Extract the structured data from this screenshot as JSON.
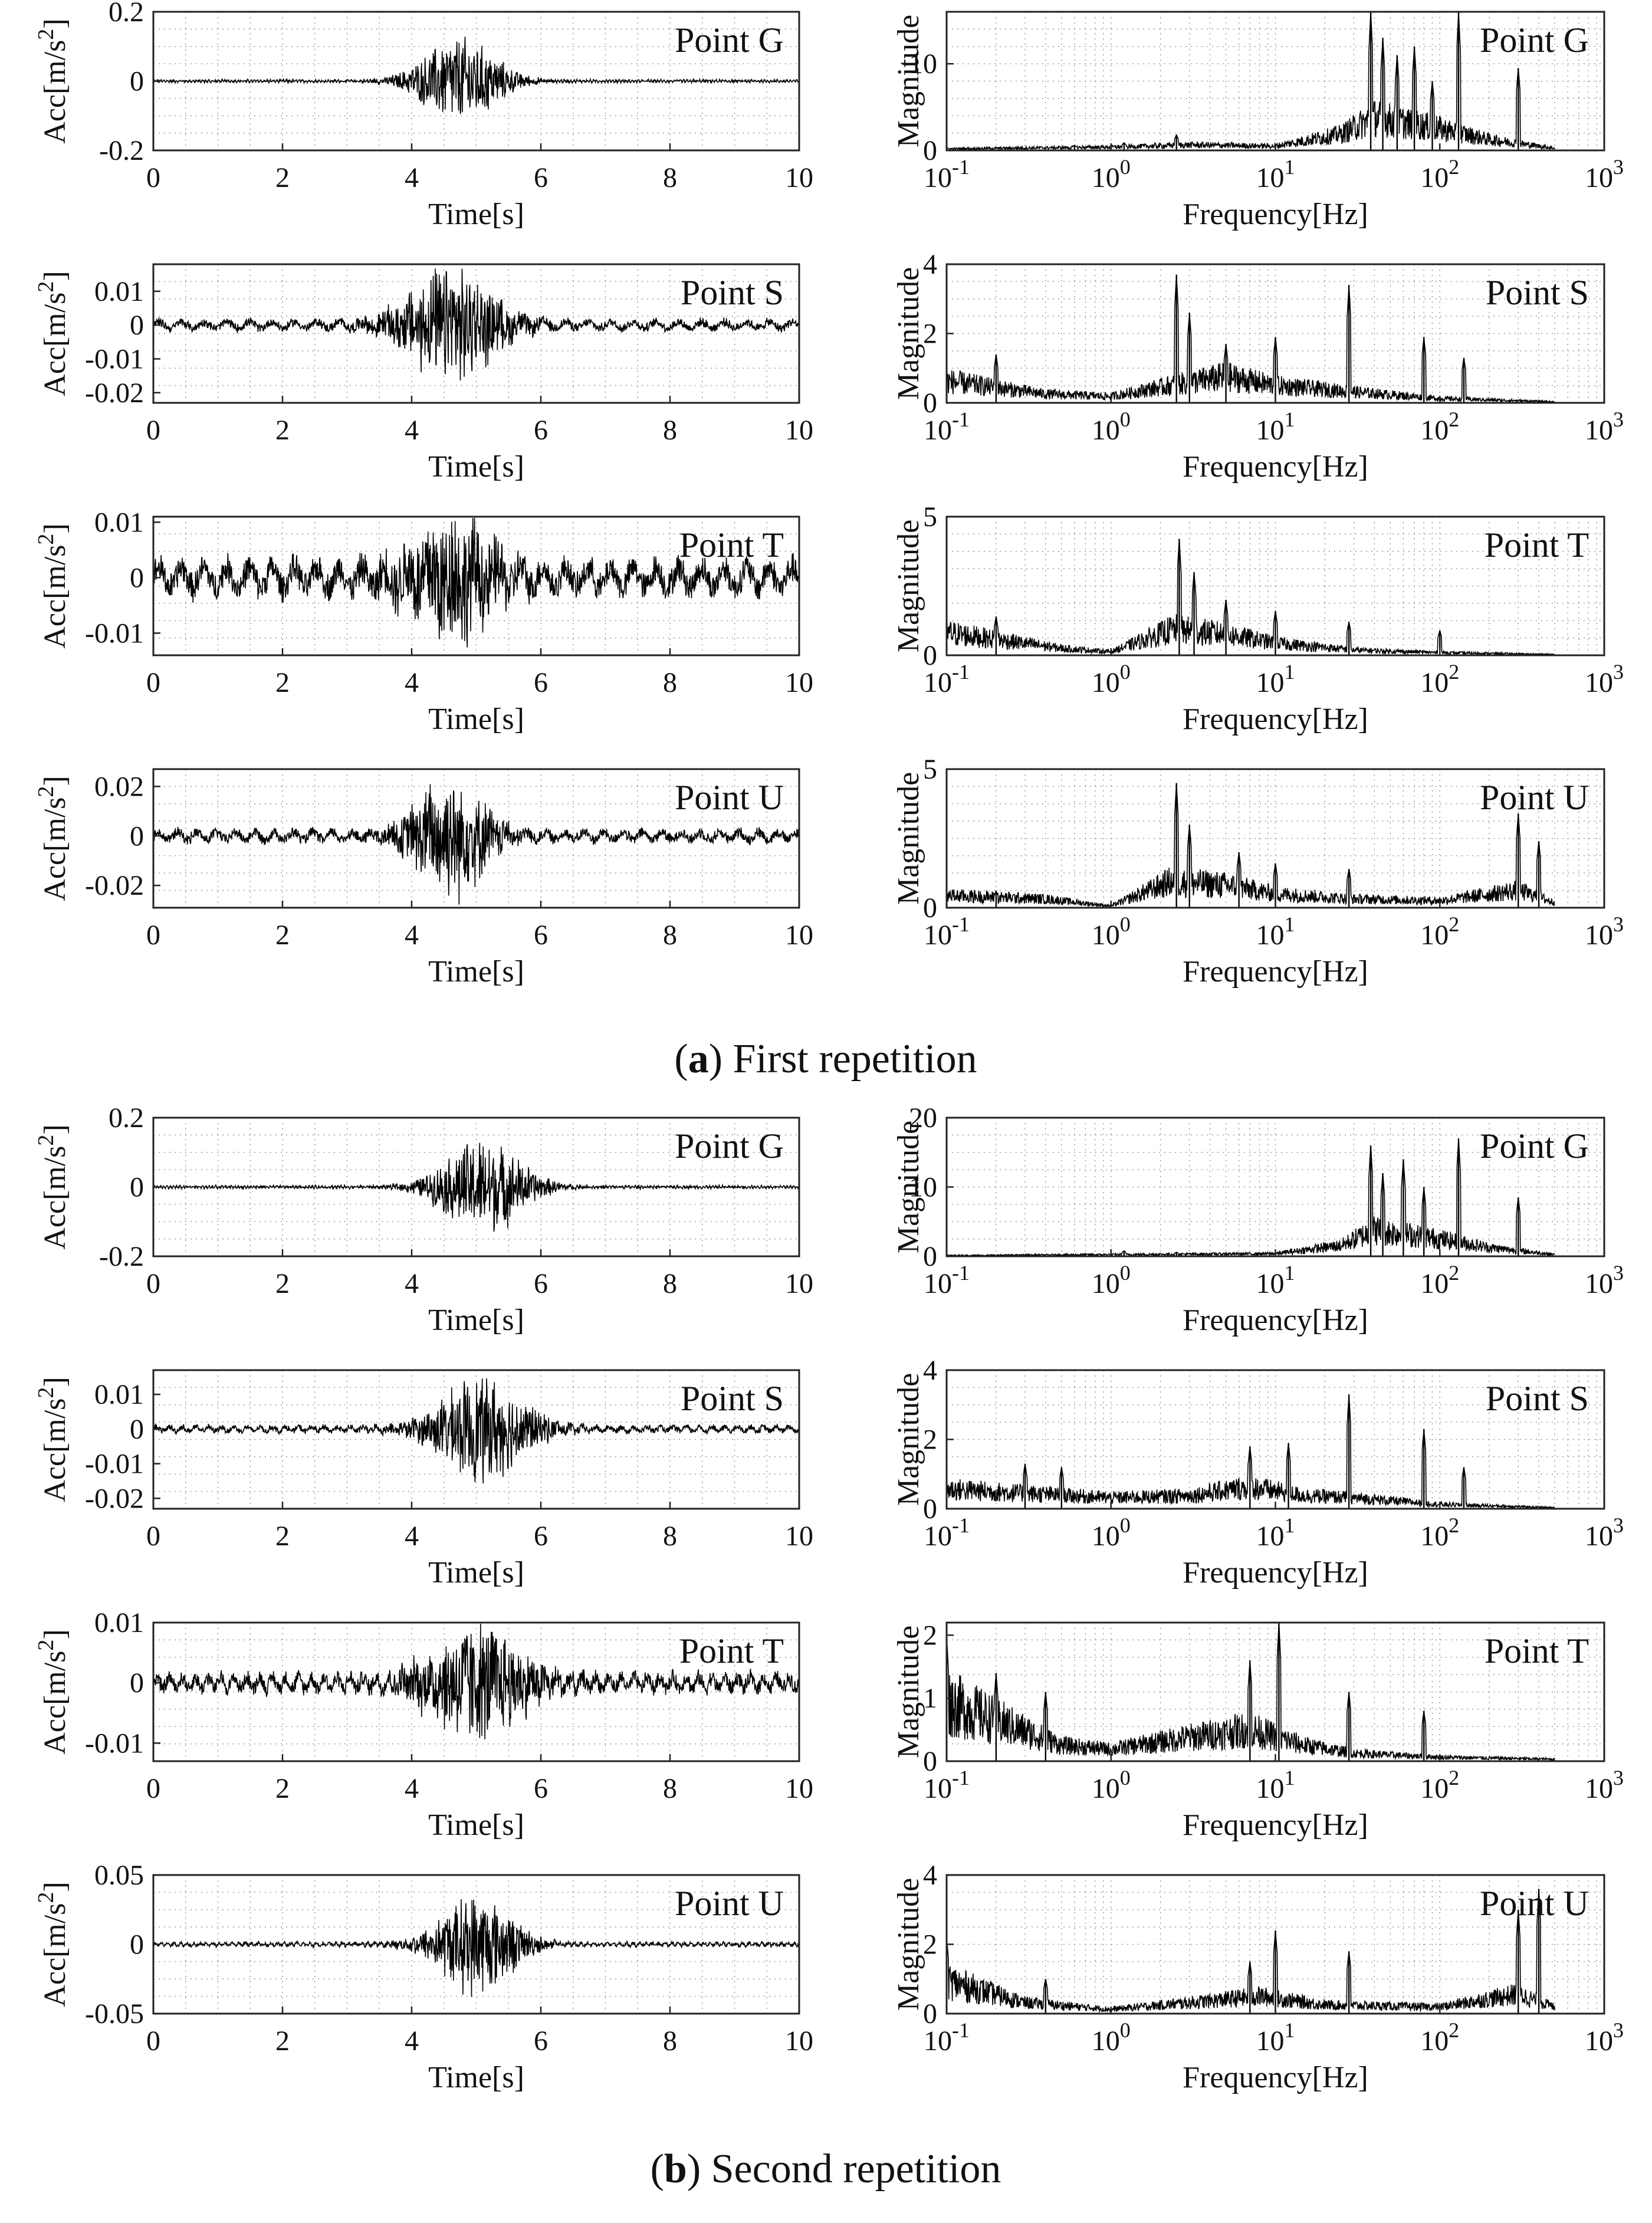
{
  "captions": [
    {
      "letter": "a",
      "text": "First repetition"
    },
    {
      "letter": "b",
      "text": "Second repetition"
    }
  ],
  "chart_data": [
    {
      "type": "line",
      "group": "a",
      "row": 0,
      "kind": "time",
      "title": "Point G",
      "xlabel": "Time[s]",
      "ylabel": "Acc[m/s2]",
      "xlim": [
        0,
        10
      ],
      "ylim": [
        -0.2,
        0.2
      ],
      "yticks": [
        -0.2,
        0,
        0.2
      ],
      "ytick_labels": [
        "-0.2",
        "0",
        "0.2"
      ],
      "xticks": [
        0,
        2,
        4,
        6,
        8,
        10
      ],
      "envelope": {
        "center": 4.75,
        "width": 0.7,
        "peak": 0.14,
        "baseline": 0.004,
        "period": 0.05
      }
    },
    {
      "type": "line",
      "group": "a",
      "row": 0,
      "kind": "freq",
      "title": "Point G",
      "xlabel": "Frequency[Hz]",
      "ylabel": "Magnitude",
      "xlim": [
        0.1,
        1000
      ],
      "ylim": [
        0,
        16
      ],
      "yticks": [
        0,
        10
      ],
      "ytick_labels": [
        "0",
        "10"
      ],
      "x_log": true,
      "peaks": [
        {
          "f": 0.6,
          "m": 0.6
        },
        {
          "f": 1.2,
          "m": 0.9
        },
        {
          "f": 2.5,
          "m": 1.8
        },
        {
          "f": 38,
          "m": 16
        },
        {
          "f": 45,
          "m": 13
        },
        {
          "f": 55,
          "m": 11
        },
        {
          "f": 70,
          "m": 12
        },
        {
          "f": 90,
          "m": 8
        },
        {
          "f": 130,
          "m": 16
        },
        {
          "f": 300,
          "m": 9.5
        }
      ],
      "band": [
        [
          0.1,
          0.3
        ],
        [
          1,
          0.6
        ],
        [
          3,
          1
        ],
        [
          10,
          0.8
        ],
        [
          25,
          3
        ],
        [
          40,
          6
        ],
        [
          100,
          4
        ],
        [
          200,
          2
        ],
        [
          500,
          0.4
        ]
      ]
    },
    {
      "type": "line",
      "group": "a",
      "row": 1,
      "kind": "time",
      "title": "Point S",
      "xlabel": "Time[s]",
      "ylabel": "Acc[m/s2]",
      "xlim": [
        0,
        10
      ],
      "ylim": [
        -0.023,
        0.018
      ],
      "yticks": [
        -0.02,
        -0.01,
        0,
        0.01
      ],
      "ytick_labels": [
        "-0.02",
        "-0.01",
        "0",
        "0.01"
      ],
      "xticks": [
        0,
        2,
        4,
        6,
        8,
        10
      ],
      "envelope": {
        "center": 4.6,
        "width": 0.8,
        "peak": 0.018,
        "baseline": 0.0015,
        "period": 0.35
      }
    },
    {
      "type": "line",
      "group": "a",
      "row": 1,
      "kind": "freq",
      "title": "Point S",
      "xlabel": "Frequency[Hz]",
      "ylabel": "Magnitude",
      "xlim": [
        0.1,
        1000
      ],
      "ylim": [
        0,
        4
      ],
      "yticks": [
        0,
        2,
        4
      ],
      "ytick_labels": [
        "0",
        "2",
        "4"
      ],
      "x_log": true,
      "peaks": [
        {
          "f": 0.2,
          "m": 1.4
        },
        {
          "f": 2.5,
          "m": 3.7
        },
        {
          "f": 3.0,
          "m": 2.6
        },
        {
          "f": 5,
          "m": 1.7
        },
        {
          "f": 10,
          "m": 1.9
        },
        {
          "f": 28,
          "m": 3.4
        },
        {
          "f": 80,
          "m": 1.9
        },
        {
          "f": 140,
          "m": 1.3
        }
      ],
      "band": [
        [
          0.1,
          1
        ],
        [
          0.4,
          0.4
        ],
        [
          1,
          0.3
        ],
        [
          2.3,
          0.8
        ],
        [
          5,
          1.2
        ],
        [
          10,
          0.8
        ],
        [
          30,
          0.5
        ],
        [
          100,
          0.2
        ],
        [
          500,
          0.05
        ]
      ]
    },
    {
      "type": "line",
      "group": "a",
      "row": 2,
      "kind": "time",
      "title": "Point T",
      "xlabel": "Time[s]",
      "ylabel": "Acc[m/s2]",
      "xlim": [
        0,
        10
      ],
      "ylim": [
        -0.014,
        0.011
      ],
      "yticks": [
        -0.01,
        0,
        0.01
      ],
      "ytick_labels": [
        "-0.01",
        "0",
        "0.01"
      ],
      "xticks": [
        0,
        2,
        4,
        6,
        8,
        10
      ],
      "envelope": {
        "center": 4.6,
        "width": 0.75,
        "peak": 0.011,
        "baseline": 0.003,
        "period": 0.35
      }
    },
    {
      "type": "line",
      "group": "a",
      "row": 2,
      "kind": "freq",
      "title": "Point T",
      "xlabel": "Frequency[Hz]",
      "ylabel": "Magnitude",
      "xlim": [
        0.1,
        1000
      ],
      "ylim": [
        0,
        5
      ],
      "yticks": [
        0,
        5
      ],
      "ytick_labels": [
        "0",
        "5"
      ],
      "x_log": true,
      "peaks": [
        {
          "f": 0.2,
          "m": 1.4
        },
        {
          "f": 2.6,
          "m": 4.2
        },
        {
          "f": 3.2,
          "m": 3
        },
        {
          "f": 5,
          "m": 2
        },
        {
          "f": 10,
          "m": 1.6
        },
        {
          "f": 28,
          "m": 1.2
        },
        {
          "f": 100,
          "m": 0.9
        }
      ],
      "band": [
        [
          0.1,
          1.3
        ],
        [
          0.5,
          0.4
        ],
        [
          1,
          0.2
        ],
        [
          2.4,
          1.5
        ],
        [
          5,
          1.2
        ],
        [
          10,
          0.7
        ],
        [
          30,
          0.3
        ],
        [
          100,
          0.15
        ],
        [
          500,
          0.05
        ]
      ]
    },
    {
      "type": "line",
      "group": "a",
      "row": 3,
      "kind": "time",
      "title": "Point U",
      "xlabel": "Time[s]",
      "ylabel": "Acc[m/s2]",
      "xlim": [
        0,
        10
      ],
      "ylim": [
        -0.029,
        0.027
      ],
      "yticks": [
        -0.02,
        0,
        0.02
      ],
      "ytick_labels": [
        "-0.02",
        "0",
        "0.02"
      ],
      "xticks": [
        0,
        2,
        4,
        6,
        8,
        10
      ],
      "envelope": {
        "center": 4.6,
        "width": 0.65,
        "peak": 0.026,
        "baseline": 0.0025,
        "period": 0.3
      }
    },
    {
      "type": "line",
      "group": "a",
      "row": 3,
      "kind": "freq",
      "title": "Point U",
      "xlabel": "Frequency[Hz]",
      "ylabel": "Magnitude",
      "xlim": [
        0.1,
        1000
      ],
      "ylim": [
        0,
        5
      ],
      "yticks": [
        0,
        5
      ],
      "ytick_labels": [
        "0",
        "5"
      ],
      "x_log": true,
      "peaks": [
        {
          "f": 0.2,
          "m": 0.6
        },
        {
          "f": 2.5,
          "m": 4.5
        },
        {
          "f": 3,
          "m": 3
        },
        {
          "f": 6,
          "m": 2
        },
        {
          "f": 10,
          "m": 1.6
        },
        {
          "f": 28,
          "m": 1.4
        },
        {
          "f": 300,
          "m": 3.4
        },
        {
          "f": 400,
          "m": 2.4
        }
      ],
      "band": [
        [
          0.1,
          0.7
        ],
        [
          0.4,
          0.5
        ],
        [
          1,
          0.1
        ],
        [
          2.3,
          1.5
        ],
        [
          5,
          1.3
        ],
        [
          10,
          0.8
        ],
        [
          30,
          0.5
        ],
        [
          100,
          0.4
        ],
        [
          300,
          1
        ],
        [
          500,
          0.3
        ]
      ]
    },
    {
      "type": "line",
      "group": "b",
      "row": 0,
      "kind": "time",
      "title": "Point G",
      "xlabel": "Time[s]",
      "ylabel": "Acc[m/s2]",
      "xlim": [
        0,
        10
      ],
      "ylim": [
        -0.2,
        0.2
      ],
      "yticks": [
        -0.2,
        0,
        0.2
      ],
      "ytick_labels": [
        "-0.2",
        "0",
        "0.2"
      ],
      "xticks": [
        0,
        2,
        4,
        6,
        8,
        10
      ],
      "envelope": {
        "center": 5.1,
        "width": 0.75,
        "peak": 0.15,
        "baseline": 0.004,
        "period": 0.05
      }
    },
    {
      "type": "line",
      "group": "b",
      "row": 0,
      "kind": "freq",
      "title": "Point G",
      "xlabel": "Frequency[Hz]",
      "ylabel": "Magnitude",
      "xlim": [
        0.1,
        1000
      ],
      "ylim": [
        0,
        20
      ],
      "yticks": [
        0,
        10,
        20
      ],
      "ytick_labels": [
        "0",
        "10",
        "20"
      ],
      "x_log": true,
      "peaks": [
        {
          "f": 1.2,
          "m": 0.8
        },
        {
          "f": 2.5,
          "m": 0.6
        },
        {
          "f": 38,
          "m": 16
        },
        {
          "f": 45,
          "m": 12
        },
        {
          "f": 60,
          "m": 14
        },
        {
          "f": 80,
          "m": 10
        },
        {
          "f": 130,
          "m": 17
        },
        {
          "f": 300,
          "m": 8.5
        }
      ],
      "band": [
        [
          0.1,
          0.2
        ],
        [
          1,
          0.4
        ],
        [
          3,
          0.5
        ],
        [
          10,
          0.6
        ],
        [
          25,
          2.5
        ],
        [
          40,
          6
        ],
        [
          100,
          4
        ],
        [
          200,
          2
        ],
        [
          500,
          0.4
        ]
      ]
    },
    {
      "type": "line",
      "group": "b",
      "row": 1,
      "kind": "time",
      "title": "Point S",
      "xlabel": "Time[s]",
      "ylabel": "Acc[m/s2]",
      "xlim": [
        0,
        10
      ],
      "ylim": [
        -0.023,
        0.017
      ],
      "yticks": [
        -0.02,
        -0.01,
        0,
        0.01
      ],
      "ytick_labels": [
        "-0.02",
        "-0.01",
        "0",
        "0.01"
      ],
      "xticks": [
        0,
        2,
        4,
        6,
        8,
        10
      ],
      "envelope": {
        "center": 5.1,
        "width": 0.8,
        "peak": 0.016,
        "baseline": 0.001,
        "period": 0.2
      }
    },
    {
      "type": "line",
      "group": "b",
      "row": 1,
      "kind": "freq",
      "title": "Point S",
      "xlabel": "Frequency[Hz]",
      "ylabel": "Magnitude",
      "xlim": [
        0.1,
        1000
      ],
      "ylim": [
        0,
        4
      ],
      "yticks": [
        0,
        2,
        4
      ],
      "ytick_labels": [
        "0",
        "2",
        "4"
      ],
      "x_log": true,
      "peaks": [
        {
          "f": 0.3,
          "m": 1.3
        },
        {
          "f": 0.5,
          "m": 1.2
        },
        {
          "f": 7,
          "m": 1.8
        },
        {
          "f": 12,
          "m": 1.9
        },
        {
          "f": 28,
          "m": 3.3
        },
        {
          "f": 80,
          "m": 2.3
        },
        {
          "f": 140,
          "m": 1.2
        }
      ],
      "band": [
        [
          0.1,
          0.9
        ],
        [
          1,
          0.5
        ],
        [
          3,
          0.6
        ],
        [
          7,
          1
        ],
        [
          15,
          0.6
        ],
        [
          30,
          0.5
        ],
        [
          100,
          0.2
        ],
        [
          500,
          0.05
        ]
      ]
    },
    {
      "type": "line",
      "group": "b",
      "row": 2,
      "kind": "time",
      "title": "Point T",
      "xlabel": "Time[s]",
      "ylabel": "Acc[m/s2]",
      "xlim": [
        0,
        10
      ],
      "ylim": [
        -0.013,
        0.01
      ],
      "yticks": [
        -0.01,
        0,
        0.01
      ],
      "ytick_labels": [
        "-0.01",
        "0",
        "0.01"
      ],
      "xticks": [
        0,
        2,
        4,
        6,
        8,
        10
      ],
      "envelope": {
        "center": 5.0,
        "width": 0.85,
        "peak": 0.01,
        "baseline": 0.0015,
        "period": 0.2
      }
    },
    {
      "type": "line",
      "group": "b",
      "row": 2,
      "kind": "freq",
      "title": "Point T",
      "xlabel": "Frequency[Hz]",
      "ylabel": "Magnitude",
      "xlim": [
        0.1,
        1000
      ],
      "ylim": [
        0,
        2.2
      ],
      "yticks": [
        0,
        1,
        2
      ],
      "ytick_labels": [
        "0",
        "1",
        "2"
      ],
      "x_log": true,
      "peaks": [
        {
          "f": 0.1,
          "m": 2
        },
        {
          "f": 0.2,
          "m": 1.4
        },
        {
          "f": 0.4,
          "m": 1.1
        },
        {
          "f": 7,
          "m": 1.6
        },
        {
          "f": 10.5,
          "m": 2.2
        },
        {
          "f": 28,
          "m": 1.1
        },
        {
          "f": 80,
          "m": 0.8
        }
      ],
      "band": [
        [
          0.1,
          1.5
        ],
        [
          0.5,
          0.4
        ],
        [
          1,
          0.3
        ],
        [
          3,
          0.6
        ],
        [
          7,
          0.8
        ],
        [
          15,
          0.4
        ],
        [
          30,
          0.2
        ],
        [
          100,
          0.1
        ],
        [
          500,
          0.05
        ]
      ]
    },
    {
      "type": "line",
      "group": "b",
      "row": 3,
      "kind": "time",
      "title": "Point U",
      "xlabel": "Time[s]",
      "ylabel": "Acc[m/s2]",
      "xlim": [
        0,
        10
      ],
      "ylim": [
        -0.05,
        0.05
      ],
      "yticks": [
        -0.05,
        0,
        0.05
      ],
      "ytick_labels": [
        "-0.05",
        "0",
        "0.05"
      ],
      "xticks": [
        0,
        2,
        4,
        6,
        8,
        10
      ],
      "envelope": {
        "center": 5.0,
        "width": 0.7,
        "peak": 0.04,
        "baseline": 0.0015,
        "period": 0.1
      }
    },
    {
      "type": "line",
      "group": "b",
      "row": 3,
      "kind": "freq",
      "title": "Point U",
      "xlabel": "Frequency[Hz]",
      "ylabel": "Magnitude",
      "xlim": [
        0.1,
        1000
      ],
      "ylim": [
        0,
        4
      ],
      "yticks": [
        0,
        2,
        4
      ],
      "ytick_labels": [
        "0",
        "2",
        "4"
      ],
      "x_log": true,
      "peaks": [
        {
          "f": 0.1,
          "m": 2.2
        },
        {
          "f": 0.4,
          "m": 1
        },
        {
          "f": 7,
          "m": 1.5
        },
        {
          "f": 10,
          "m": 2.4
        },
        {
          "f": 28,
          "m": 1.8
        },
        {
          "f": 300,
          "m": 3
        },
        {
          "f": 400,
          "m": 3.6
        }
      ],
      "band": [
        [
          0.1,
          1.5
        ],
        [
          0.3,
          0.5
        ],
        [
          1,
          0.2
        ],
        [
          3,
          0.5
        ],
        [
          8,
          0.8
        ],
        [
          20,
          0.4
        ],
        [
          100,
          0.3
        ],
        [
          300,
          0.9
        ],
        [
          500,
          0.3
        ]
      ]
    }
  ]
}
